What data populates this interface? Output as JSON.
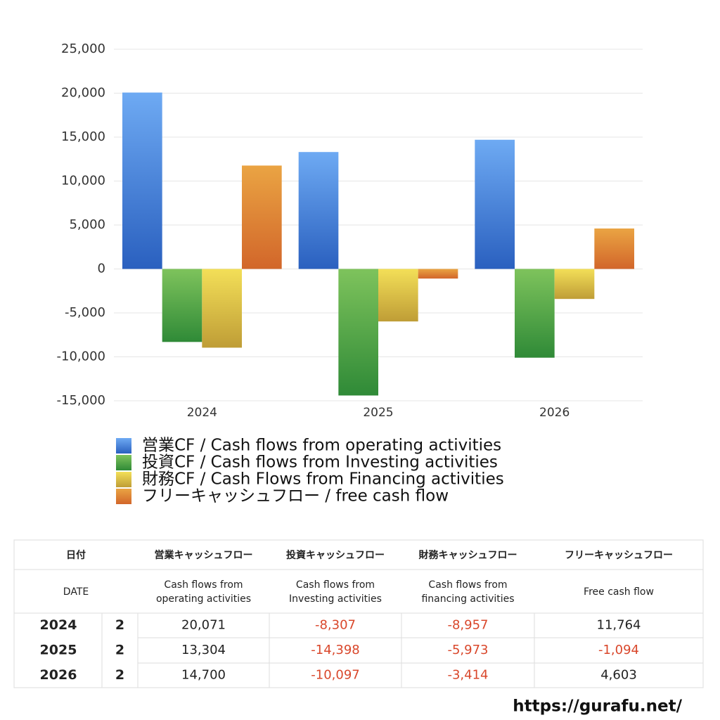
{
  "chart_data": {
    "type": "bar",
    "categories": [
      "2024",
      "2025",
      "2026"
    ],
    "series": [
      {
        "name": "営業CF / Cash flows from operating activities",
        "gradient": [
          "#6eaaf3",
          "#2a60bf"
        ],
        "values": [
          20071,
          13304,
          14700
        ]
      },
      {
        "name": "投資CF / Cash flows from Investing activities",
        "gradient": [
          "#7ec35c",
          "#2f8a37"
        ],
        "values": [
          -8307,
          -14398,
          -10097
        ]
      },
      {
        "name": "財務CF / Cash Flows from Financing activities",
        "gradient": [
          "#f3df58",
          "#bf9d36"
        ],
        "values": [
          -8957,
          -5973,
          -3414
        ]
      },
      {
        "name": "フリーキャッシュフロー / free cash flow",
        "gradient": [
          "#eaa443",
          "#d2662a"
        ],
        "values": [
          11764,
          -1094,
          4603
        ]
      }
    ],
    "ylim": [
      -15000,
      25000
    ],
    "yticks": [
      {
        "value": -15000,
        "label": "-15,000"
      },
      {
        "value": -10000,
        "label": "-10,000"
      },
      {
        "value": -5000,
        "label": "-5,000"
      },
      0,
      {
        "value": 5000,
        "label": "5,000"
      },
      {
        "value": 10000,
        "label": "10,000"
      },
      {
        "value": 15000,
        "label": "15,000"
      },
      {
        "value": 20000,
        "label": "20,000"
      },
      {
        "value": 25000,
        "label": "25,000"
      }
    ],
    "grid": true
  },
  "table": {
    "header_ja": [
      "日付",
      "営業キャッシュフロー",
      "投資キャッシュフロー",
      "財務キャッシュフロー",
      "フリーキャッシュフロー"
    ],
    "header_en": [
      [
        "DATE"
      ],
      [
        "Cash flows from",
        "operating activities"
      ],
      [
        "Cash flows from",
        "Investing activities"
      ],
      [
        "Cash flows from",
        "financing activities"
      ],
      [
        "Free cash flow"
      ]
    ],
    "rows": [
      [
        "2024",
        "2",
        "20,071",
        "-8,307",
        "-8,957",
        "11,764"
      ],
      [
        "2025",
        "2",
        "13,304",
        "-14,398",
        "-5,973",
        "-1,094"
      ],
      [
        "2026",
        "2",
        "14,700",
        "-10,097",
        "-3,414",
        "4,603"
      ]
    ]
  },
  "footer": "https://gurafu.net/"
}
